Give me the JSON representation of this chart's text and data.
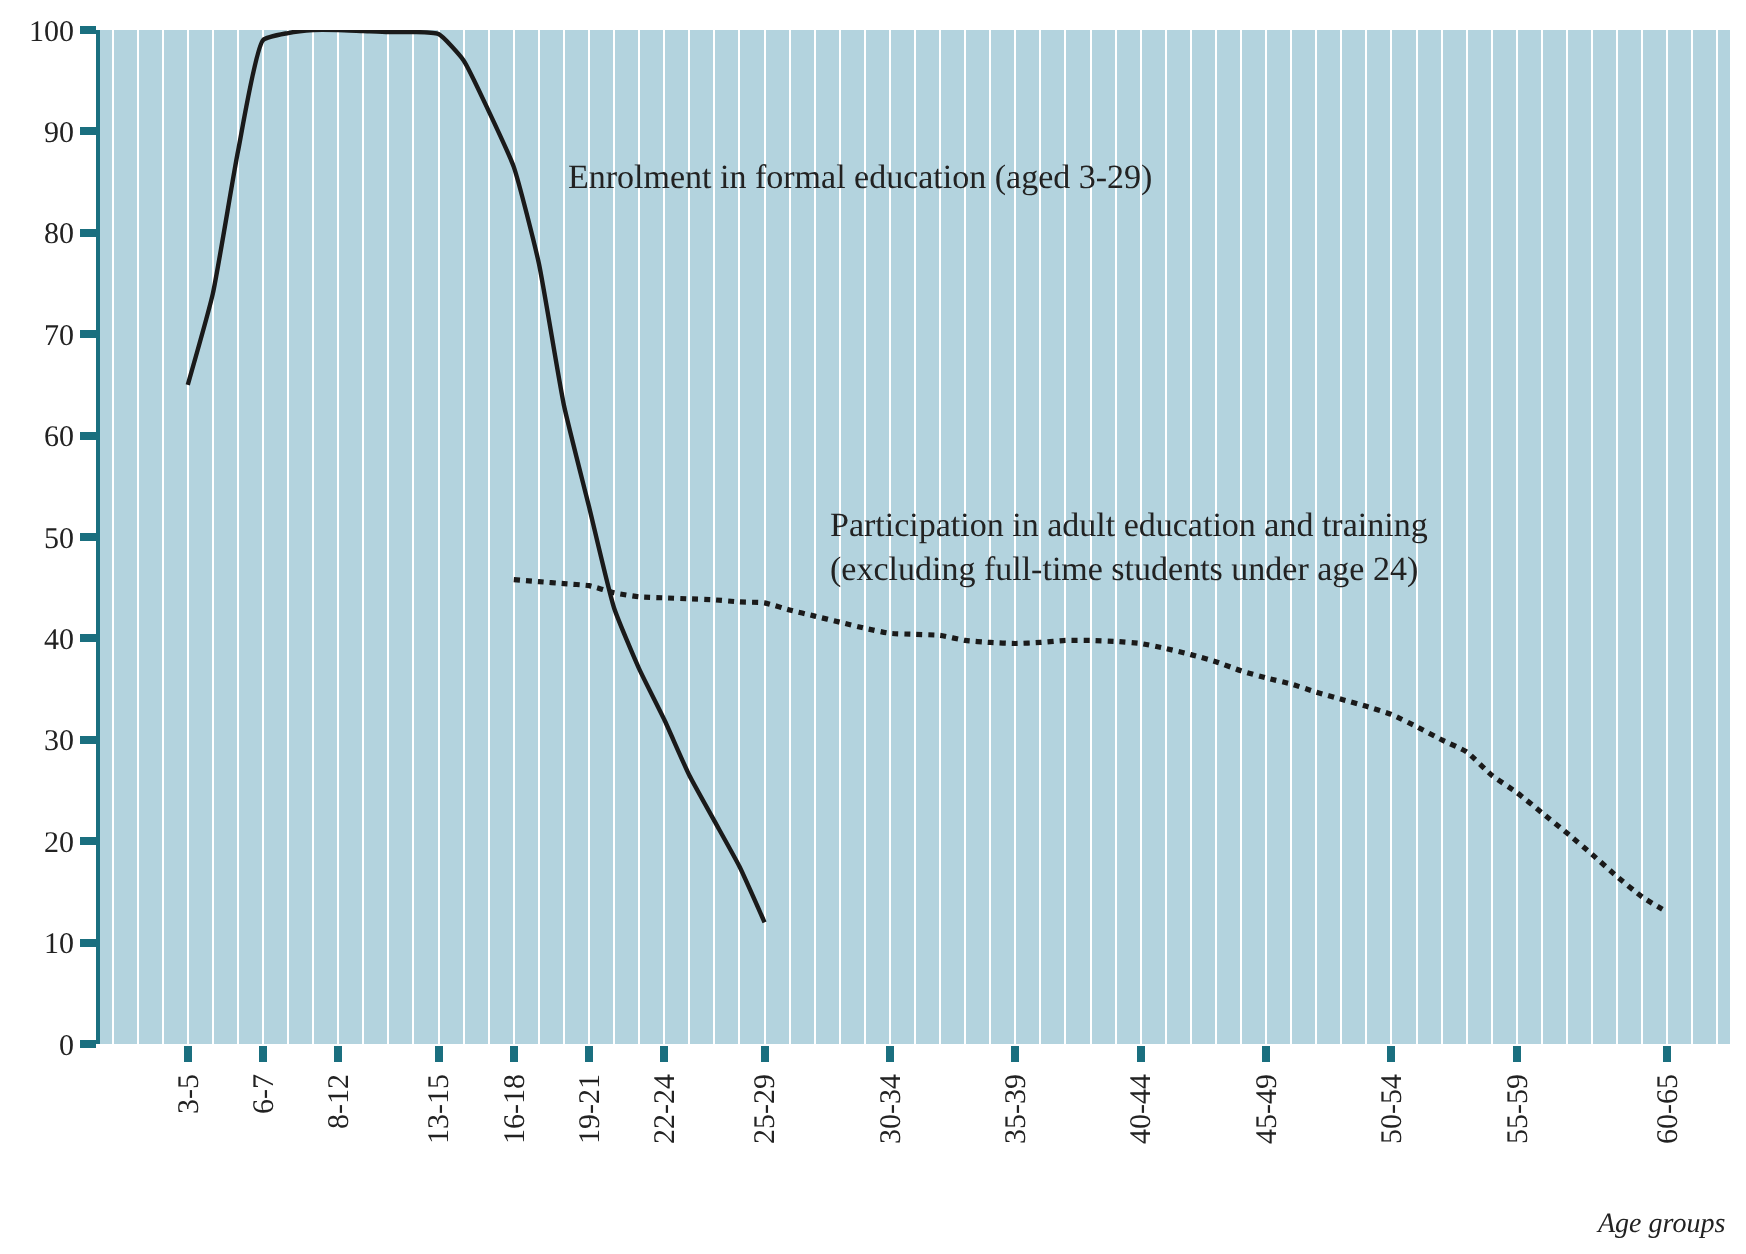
{
  "chart_data": {
    "type": "line",
    "xlabel": "Age groups",
    "categories": [
      null,
      null,
      null,
      "3-5",
      null,
      null,
      "6-7",
      null,
      null,
      "8-12",
      null,
      null,
      null,
      "13-15",
      null,
      null,
      "16-18",
      null,
      null,
      "19-21",
      null,
      null,
      "22-24",
      null,
      null,
      null,
      "25-29",
      null,
      null,
      null,
      null,
      "30-34",
      null,
      null,
      null,
      null,
      "35-39",
      null,
      null,
      null,
      null,
      "40-44",
      null,
      null,
      null,
      null,
      "45-49",
      null,
      null,
      null,
      null,
      "50-54",
      null,
      null,
      null,
      null,
      "55-59",
      null,
      null,
      null,
      null,
      null,
      "60-65",
      null,
      null
    ],
    "series": [
      {
        "color": "#1a1a1a",
        "line_style": "solid",
        "values": [
          null,
          null,
          null,
          65,
          74,
          88,
          99,
          99.7,
          100,
          100,
          99.9,
          99.8,
          99.8,
          99.6,
          97,
          92,
          86.5,
          77,
          63,
          53,
          43,
          37,
          32,
          26.5,
          22,
          17.5,
          12,
          null,
          null,
          null,
          null,
          null,
          null,
          null,
          null,
          null,
          null,
          null,
          null,
          null,
          null,
          null,
          null,
          null,
          null,
          null,
          null,
          null,
          null,
          null,
          null,
          null,
          null,
          null,
          null,
          null,
          null,
          null,
          null,
          null,
          null,
          null,
          null,
          null,
          null
        ]
      },
      {
        "color": "#1a1a1a",
        "line_style": "dotted",
        "values": [
          null,
          null,
          null,
          null,
          null,
          null,
          null,
          null,
          null,
          null,
          null,
          null,
          null,
          null,
          null,
          null,
          45.8,
          45.6,
          45.4,
          45.2,
          44.5,
          44.1,
          44,
          43.9,
          43.8,
          43.6,
          43.5,
          42.8,
          42.2,
          41.6,
          41,
          40.5,
          40.4,
          40.3,
          39.8,
          39.6,
          39.5,
          39.6,
          39.8,
          39.8,
          39.7,
          39.5,
          39,
          38.4,
          37.7,
          36.8,
          36.1,
          35.5,
          34.7,
          34,
          33.3,
          32.5,
          31.3,
          30,
          28.8,
          26.5,
          24.8,
          22.8,
          20.8,
          18.7,
          16.5,
          14.5,
          13,
          null,
          null
        ]
      }
    ],
    "annotations": [
      "Enrolment in formal education (aged 3-29)",
      "Participation in adult education and training\n(excluding full-time students under age 24)"
    ],
    "ylim": [
      0,
      100
    ],
    "yticks": [
      0,
      10,
      20,
      30,
      40,
      50,
      60,
      70,
      80,
      90,
      100
    ],
    "grid": "x",
    "marker": "none"
  }
}
